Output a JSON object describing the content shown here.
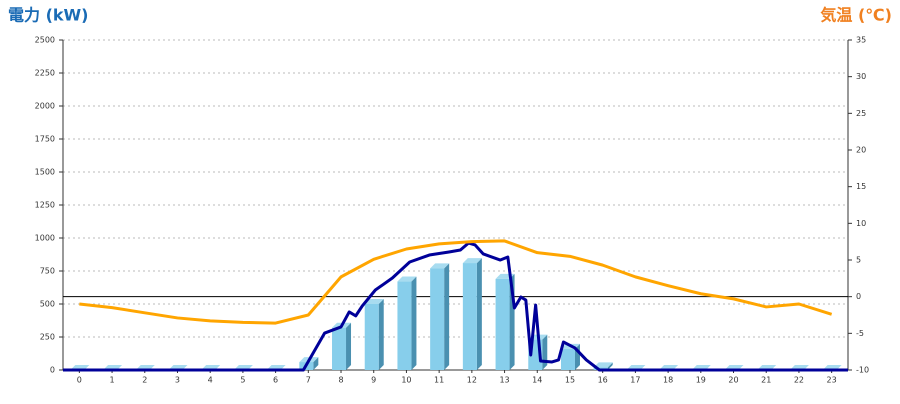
{
  "chart_data": {
    "type": "combo",
    "title_left": "電力 (kW)",
    "title_right": "気温 (℃)",
    "categories": [
      "0",
      "1",
      "2",
      "3",
      "4",
      "5",
      "6",
      "7",
      "8",
      "9",
      "10",
      "11",
      "12",
      "13",
      "14",
      "15",
      "16",
      "17",
      "18",
      "19",
      "20",
      "21",
      "22",
      "23"
    ],
    "xlim": [
      -0.5,
      23.5
    ],
    "ylim": [
      0,
      2500
    ],
    "yticks": [
      0,
      250,
      500,
      750,
      1000,
      1250,
      1500,
      1750,
      2000,
      2250,
      2500
    ],
    "y2lim": [
      -10,
      35
    ],
    "y2ticks": [
      -10,
      -5,
      0,
      5,
      10,
      15,
      20,
      25,
      30,
      35
    ],
    "y2_refline": 0,
    "grid": true,
    "series": [
      {
        "type": "bar",
        "color": "#87ceeb",
        "values": [
          0,
          0,
          0,
          0,
          0,
          0,
          0,
          60,
          320,
          500,
          670,
          770,
          810,
          690,
          230,
          160,
          20,
          0,
          0,
          0,
          0,
          0,
          0,
          0
        ]
      },
      {
        "type": "line",
        "color": "#000099",
        "x": [
          -0.5,
          6.85,
          7.5,
          8.0,
          8.25,
          8.45,
          8.65,
          9.05,
          9.57,
          10.1,
          10.7,
          11.3,
          11.65,
          11.9,
          12.1,
          12.35,
          12.87,
          13.1,
          13.3,
          13.5,
          13.65,
          13.8,
          13.95,
          14.1,
          14.45,
          14.65,
          14.8,
          15.15,
          15.5,
          15.9,
          23.5
        ],
        "values": [
          0,
          0,
          280,
          326,
          440,
          410,
          485,
          606,
          697,
          818,
          871,
          894,
          909,
          962,
          947,
          879,
          833,
          856,
          470,
          553,
          530,
          114,
          492,
          68,
          61,
          76,
          212,
          167,
          76,
          0,
          0
        ]
      },
      {
        "type": "line",
        "axis": "y2",
        "color": "#ffa500",
        "values": [
          -1.0,
          -1.5,
          -2.2,
          -2.9,
          -3.3,
          -3.5,
          -3.6,
          -2.5,
          2.7,
          5.1,
          6.5,
          7.2,
          7.5,
          7.6,
          6.0,
          5.5,
          4.3,
          2.7,
          1.5,
          0.4,
          -0.3,
          -1.4,
          -1.0,
          -2.4
        ]
      }
    ]
  }
}
